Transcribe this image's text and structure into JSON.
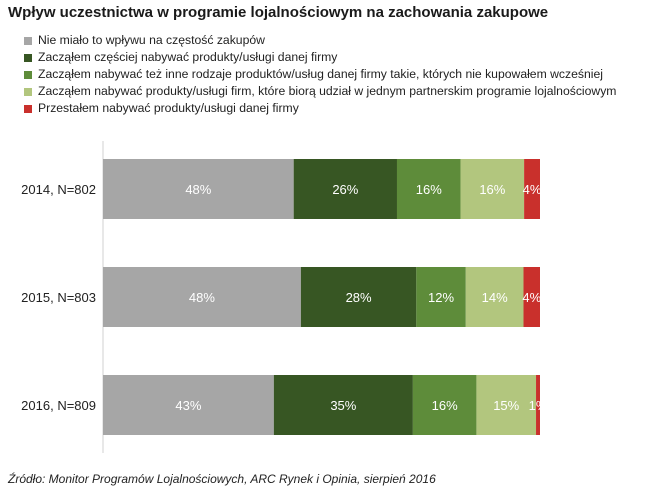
{
  "colors": {
    "gray": "#a6a6a6",
    "dark_green": "#375623",
    "green": "#5e8c3a",
    "light_green": "#b2c67e",
    "red": "#c9302c"
  },
  "chart_data": {
    "type": "bar",
    "orientation": "horizontal",
    "stacked": true,
    "title": "Wpływ uczestnictwa w programie lojalnościowym na zachowania zakupowe",
    "categories": [
      "2014, N=802",
      "2015, N=803",
      "2016, N=809"
    ],
    "series": [
      {
        "name": "Nie miało to wpływu na częstość zakupów",
        "color": "#a6a6a6",
        "values": [
          48,
          48,
          43
        ],
        "labels": [
          "48%",
          "48%",
          "43%"
        ]
      },
      {
        "name": "Zacząłem częściej nabywać produkty/usługi danej firmy",
        "color": "#375623",
        "values": [
          26,
          28,
          35
        ],
        "labels": [
          "26%",
          "28%",
          "35%"
        ]
      },
      {
        "name": "Zacząłem nabywać też inne rodzaje produktów/usług danej firmy takie, których nie kupowałem wcześniej",
        "color": "#5e8c3a",
        "values": [
          16,
          12,
          16
        ],
        "labels": [
          "16%",
          "12%",
          "16%"
        ]
      },
      {
        "name": "Zacząłem nabywać produkty/usługi firm, które biorą udział w jednym partnerskim programie lojalnościowym",
        "color": "#b2c67e",
        "values": [
          16,
          14,
          15
        ],
        "labels": [
          "16%",
          "14%",
          "15%"
        ]
      },
      {
        "name": "Przestałem nabywać produkty/usługi danej firmy",
        "color": "#c9302c",
        "values": [
          4,
          4,
          1
        ],
        "labels": [
          "4%",
          "4%",
          "1%"
        ]
      }
    ],
    "xlim": [
      0,
      110
    ],
    "legend_position": "top-left",
    "grid": false
  },
  "source": "Źródło: Monitor Programów Lojalnościowych, ARC Rynek i Opinia, sierpień 2016"
}
